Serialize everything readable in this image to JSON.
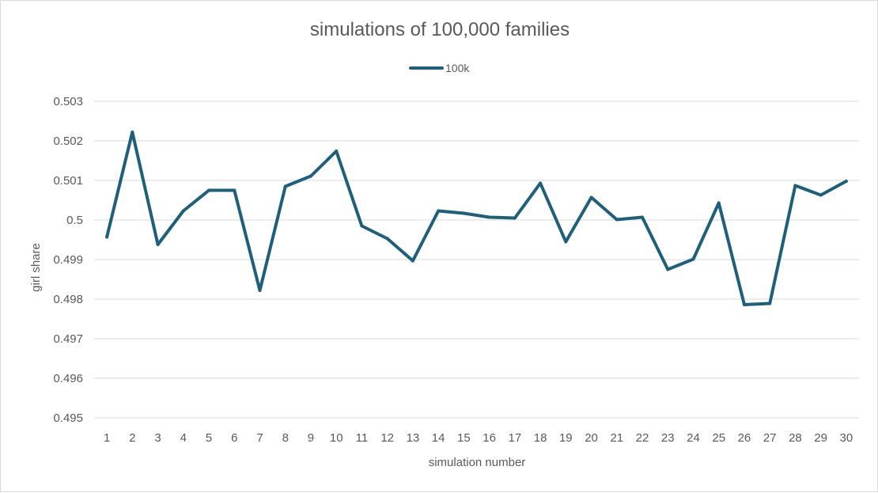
{
  "chart_data": {
    "type": "line",
    "title": "simulations of 100,000 families",
    "xlabel": "simulation number",
    "ylabel": "girl share",
    "legend": "top-center",
    "grid": true,
    "ylim": [
      0.495,
      0.503
    ],
    "yticks": [
      "0.495",
      "0.496",
      "0.497",
      "0.498",
      "0.499",
      "0.5",
      "0.501",
      "0.502",
      "0.503"
    ],
    "categories": [
      "1",
      "2",
      "3",
      "4",
      "5",
      "6",
      "7",
      "8",
      "9",
      "10",
      "11",
      "12",
      "13",
      "14",
      "15",
      "16",
      "17",
      "18",
      "19",
      "20",
      "21",
      "22",
      "23",
      "24",
      "25",
      "26",
      "27",
      "28",
      "29",
      "30"
    ],
    "series": [
      {
        "name": "100k",
        "color": "#1f5f7a",
        "values": [
          0.49957,
          0.50222,
          0.49938,
          0.50023,
          0.50075,
          0.50075,
          0.49822,
          0.50085,
          0.50111,
          0.50174,
          0.49985,
          0.49953,
          0.49897,
          0.50023,
          0.50017,
          0.50007,
          0.50005,
          0.50093,
          0.49945,
          0.50057,
          0.50001,
          0.50007,
          0.49875,
          0.49901,
          0.50043,
          0.49786,
          0.49789,
          0.50087,
          0.50063,
          0.50098
        ]
      }
    ]
  }
}
